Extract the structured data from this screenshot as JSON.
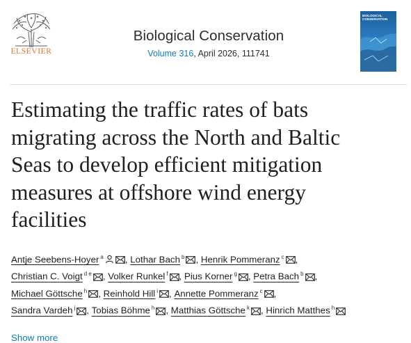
{
  "header": {
    "publisher": "ELSEVIER",
    "journal_title": "Biological Conservation",
    "volume_link": "Volume 316",
    "issue_info": ", April 2026, 111741",
    "cover_title": "BIOLOGICAL CONSERVATION"
  },
  "article": {
    "title_lines": [
      "Estimating the traffic rates of bats",
      "migrating across the North and Baltic",
      "Seas to develop efficient mitigation",
      "measures at offshore wind energy",
      "facilities"
    ]
  },
  "authors": {
    "rows": [
      {
        "items": [
          {
            "name": "Antje Seebens-Hoyer",
            "aff": "a",
            "sep": ","
          },
          {
            "name": "Lothar Bach",
            "aff": "b",
            "sep": ","
          },
          {
            "name": "Henrik Pommeranz",
            "aff": "c",
            "sep": ","
          }
        ]
      },
      {
        "items": [
          {
            "name": "Christian C. Voigt",
            "aff": "d e",
            "sep": ","
          },
          {
            "name": "Volker Runkel",
            "aff": "f",
            "sep": ","
          },
          {
            "name": "Pius Korner",
            "aff": "g",
            "sep": ","
          },
          {
            "name": "Petra Bach",
            "aff": "b",
            "sep": ","
          }
        ]
      },
      {
        "items": [
          {
            "name": "Michael Göttsche",
            "aff": "h",
            "sep": ","
          },
          {
            "name": "Reinhold Hill",
            "aff": "i",
            "sep": ","
          },
          {
            "name": "Annette Pommeranz",
            "aff": "c",
            "sep": ","
          }
        ]
      },
      {
        "items": [
          {
            "name": "Sandra Vardeh",
            "aff": "j",
            "sep": ","
          },
          {
            "name": "Tobias Böhme",
            "aff": "h",
            "sep": ","
          },
          {
            "name": "Matthias Göttsche",
            "aff": "k",
            "sep": ","
          },
          {
            "name": "Hinrich Matthes",
            "aff": "h",
            "sep": ""
          }
        ]
      }
    ],
    "corresponding_author_index": 0
  },
  "show_more": "Show more"
}
